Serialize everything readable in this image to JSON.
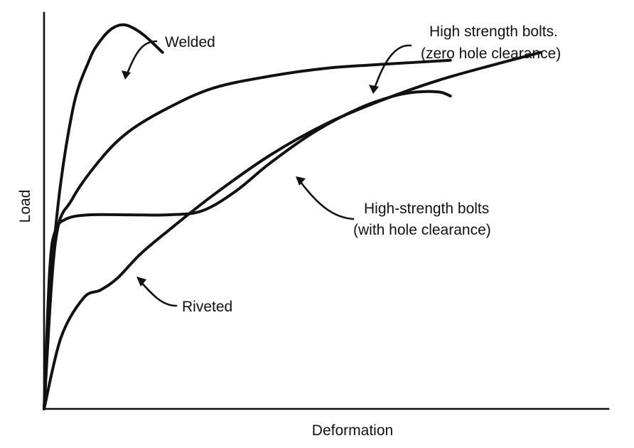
{
  "chart_data": {
    "type": "line",
    "xlabel": "Deformation",
    "ylabel": "Load",
    "grid": false,
    "legend": "none",
    "x_ticks": "none",
    "y_ticks": "none",
    "xlim": [
      0,
      1
    ],
    "ylim": [
      0,
      1
    ],
    "series": [
      {
        "name": "Welded",
        "x": [
          0.0,
          0.02,
          0.05,
          0.08,
          0.1,
          0.12,
          0.14,
          0.16,
          0.18,
          0.21
        ],
        "y": [
          0.0,
          0.45,
          0.75,
          0.88,
          0.93,
          0.96,
          0.97,
          0.96,
          0.94,
          0.9
        ]
      },
      {
        "name": "High strength bolts (zero hole clearance)",
        "x": [
          0.0,
          0.02,
          0.05,
          0.1,
          0.15,
          0.22,
          0.3,
          0.4,
          0.5,
          0.6,
          0.72
        ],
        "y": [
          0.0,
          0.42,
          0.53,
          0.63,
          0.7,
          0.76,
          0.81,
          0.84,
          0.86,
          0.87,
          0.88
        ]
      },
      {
        "name": "High-strength bolts (with hole clearance)",
        "x": [
          0.0,
          0.01,
          0.02,
          0.04,
          0.08,
          0.15,
          0.22,
          0.28,
          0.34,
          0.4,
          0.48,
          0.56,
          0.62,
          0.66,
          0.7,
          0.72
        ],
        "y": [
          0.0,
          0.35,
          0.45,
          0.48,
          0.49,
          0.49,
          0.49,
          0.5,
          0.55,
          0.62,
          0.7,
          0.76,
          0.79,
          0.8,
          0.8,
          0.79
        ]
      },
      {
        "name": "Riveted",
        "x": [
          0.0,
          0.03,
          0.07,
          0.1,
          0.13,
          0.17,
          0.22,
          0.3,
          0.4,
          0.5,
          0.6,
          0.7,
          0.8,
          0.88
        ],
        "y": [
          0.0,
          0.18,
          0.28,
          0.3,
          0.33,
          0.39,
          0.45,
          0.54,
          0.64,
          0.72,
          0.78,
          0.83,
          0.87,
          0.9
        ]
      }
    ],
    "annotations": [
      {
        "id": "welded",
        "text": "Welded"
      },
      {
        "id": "hsb_zero_1",
        "text": "High strength bolts."
      },
      {
        "id": "hsb_zero_2",
        "text": "(zero hole clearance)"
      },
      {
        "id": "hsb_hole_1",
        "text": "High-strength bolts"
      },
      {
        "id": "hsb_hole_2",
        "text": "(with hole clearance)"
      },
      {
        "id": "riveted",
        "text": "Riveted"
      }
    ]
  }
}
